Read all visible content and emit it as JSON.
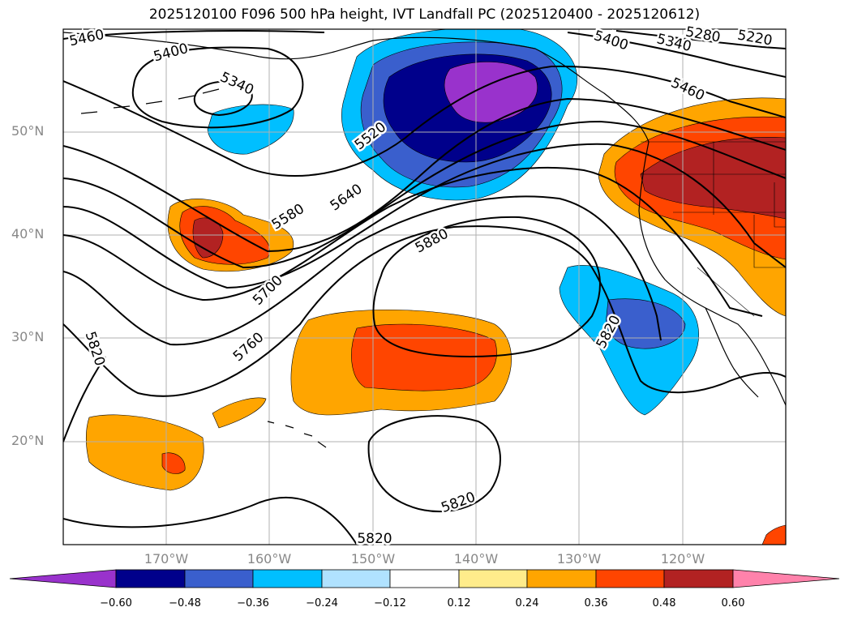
{
  "title": "2025120100 F096 500 hPa height, IVT Landfall PC (2025120400 - 2025120612)",
  "map": {
    "lat_labels": [
      "50°N",
      "40°N",
      "30°N",
      "20°N"
    ],
    "lon_labels": [
      "170°W",
      "160°W",
      "150°W",
      "140°W",
      "130°W",
      "120°W"
    ],
    "contour_labels": [
      "5460",
      "5400",
      "5340",
      "5520",
      "5580",
      "5640",
      "5700",
      "5760",
      "5820",
      "5880",
      "5820",
      "5820",
      "5820",
      "5400",
      "5340",
      "5280",
      "5220",
      "5460"
    ]
  },
  "colorbar": {
    "ticks": [
      "−0.60",
      "−0.48",
      "−0.36",
      "−0.24",
      "−0.12",
      "0.12",
      "0.24",
      "0.36",
      "0.48",
      "0.60"
    ],
    "colors": [
      "#9932CC",
      "#00008B",
      "#3A5FCD",
      "#00BFFF",
      "#B0E2FF",
      "#FFFFFF",
      "#FFEC8B",
      "#FFA500",
      "#FF4500",
      "#B22222",
      "#FF82AB"
    ]
  }
}
